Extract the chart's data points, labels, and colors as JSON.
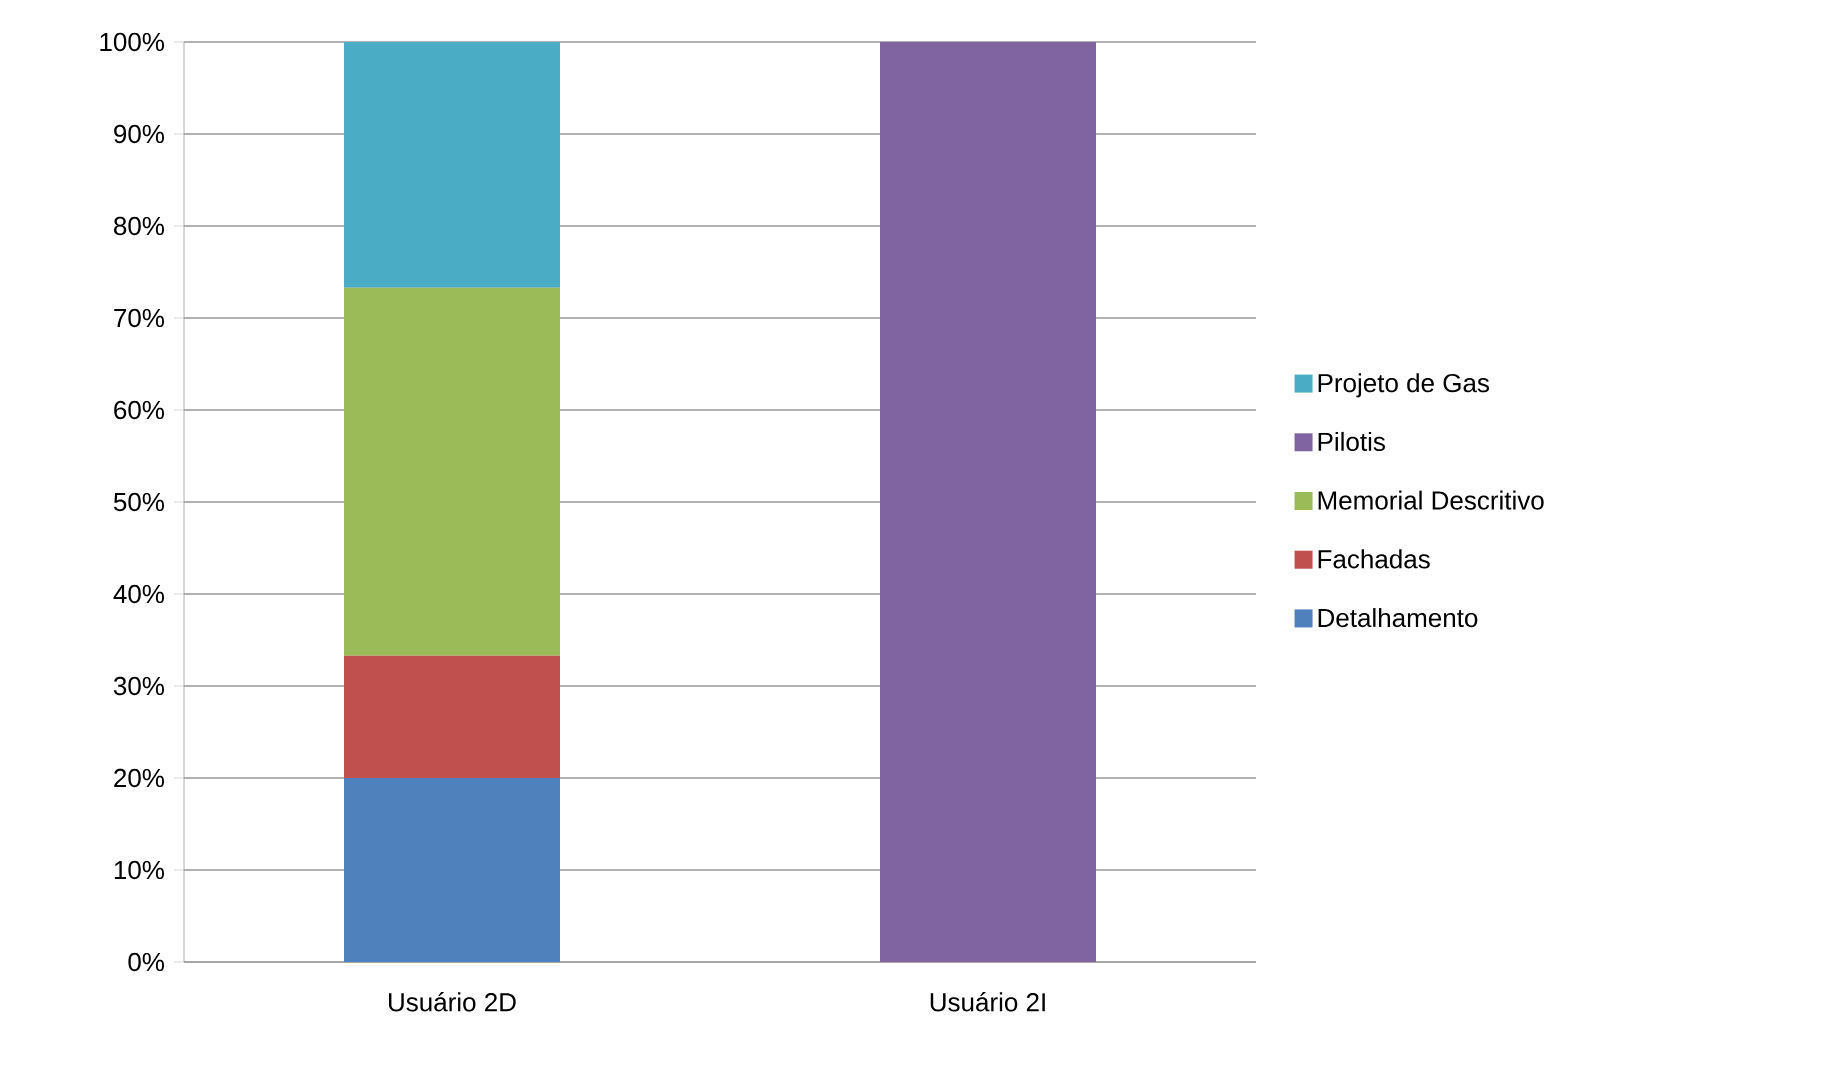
{
  "chart_data": {
    "type": "bar",
    "stacked": true,
    "categories": [
      "Usuário 2D",
      "Usuário 2I"
    ],
    "series": [
      {
        "name": "Detalhamento",
        "color": "#4f81bd",
        "values": [
          20,
          null
        ]
      },
      {
        "name": "Fachadas",
        "color": "#c0504d",
        "values": [
          13.3,
          null
        ]
      },
      {
        "name": "Memorial Descritivo",
        "color": "#9bbb59",
        "values": [
          40,
          null
        ]
      },
      {
        "name": "Pilotis",
        "color": "#8064a2",
        "values": [
          null,
          100
        ]
      },
      {
        "name": "Projeto de Gas",
        "color": "#4bacc6",
        "values": [
          26.7,
          null
        ]
      }
    ],
    "ylim": [
      0,
      100
    ],
    "yticks": [
      {
        "value": 0,
        "label": "0%"
      },
      {
        "value": 10,
        "label": "10%"
      },
      {
        "value": 20,
        "label": "20%"
      },
      {
        "value": 30,
        "label": "30%"
      },
      {
        "value": 40,
        "label": "40%"
      },
      {
        "value": 50,
        "label": "50%"
      },
      {
        "value": 60,
        "label": "60%"
      },
      {
        "value": 70,
        "label": "70%"
      },
      {
        "value": 80,
        "label": "80%"
      },
      {
        "value": 90,
        "label": "90%"
      },
      {
        "value": 100,
        "label": "100%"
      }
    ],
    "grid": "y",
    "legend": "right"
  }
}
